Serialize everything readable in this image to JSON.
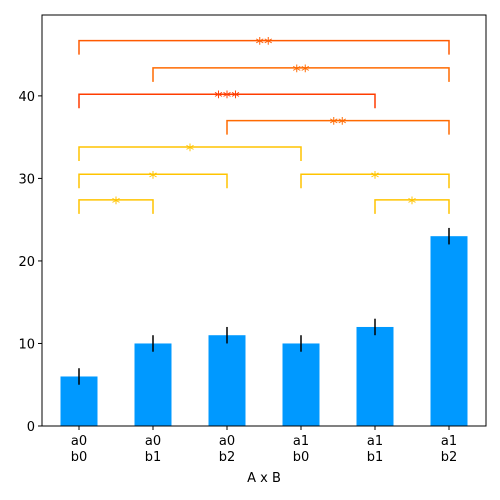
{
  "chart_data": {
    "type": "bar",
    "categories": [
      [
        "a0",
        "b0"
      ],
      [
        "a0",
        "b1"
      ],
      [
        "a0",
        "b2"
      ],
      [
        "a1",
        "b0"
      ],
      [
        "a1",
        "b1"
      ],
      [
        "a1",
        "b2"
      ]
    ],
    "values": [
      6,
      10,
      11,
      10,
      12,
      23
    ],
    "errors": [
      1,
      1,
      1,
      1,
      1,
      1
    ],
    "color": "#0099ff",
    "x_label": "A x B",
    "ylim": [
      0,
      49.8
    ],
    "yticks": [
      0,
      10,
      20,
      30,
      40
    ],
    "brackets": [
      {
        "pair": [
          0,
          5
        ],
        "y": 46.7,
        "text": "**",
        "color": "#ff5a00"
      },
      {
        "pair": [
          1,
          5
        ],
        "y": 43.4,
        "text": "**",
        "color": "#ff6a00"
      },
      {
        "pair": [
          0,
          4
        ],
        "y": 40.2,
        "text": "***",
        "color": "#ff3c00"
      },
      {
        "pair": [
          2,
          5
        ],
        "y": 37.0,
        "text": "**",
        "color": "#ff6a00"
      },
      {
        "pair": [
          0,
          3
        ],
        "y": 33.8,
        "text": "*",
        "color": "#ffc400"
      },
      {
        "pair": [
          0,
          2
        ],
        "y": 30.5,
        "text": "*",
        "color": "#ffc400"
      },
      {
        "pair": [
          3,
          5
        ],
        "y": 30.5,
        "text": "*",
        "color": "#ffc400"
      },
      {
        "pair": [
          0,
          1
        ],
        "y": 27.4,
        "text": "*",
        "color": "#ffc400"
      },
      {
        "pair": [
          4,
          5
        ],
        "y": 27.4,
        "text": "*",
        "color": "#ffc400"
      }
    ]
  }
}
